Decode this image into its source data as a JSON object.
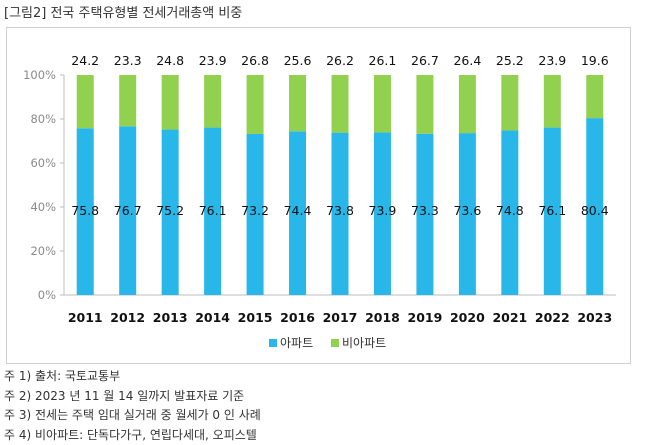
{
  "title": "[그림2] 전국 주택유형별 전세거래총액 비중",
  "colors": {
    "apartment": "#29b6e8",
    "non_apartment": "#92d050"
  },
  "chart_data": {
    "type": "bar",
    "stacked": true,
    "categories": [
      "2011",
      "2012",
      "2013",
      "2014",
      "2015",
      "2016",
      "2017",
      "2018",
      "2019",
      "2020",
      "2021",
      "2022",
      "2023"
    ],
    "series": [
      {
        "name": "아파트",
        "values": [
          75.8,
          76.7,
          75.2,
          76.1,
          73.2,
          74.4,
          73.8,
          73.9,
          73.3,
          73.6,
          74.8,
          76.1,
          80.4
        ]
      },
      {
        "name": "비아파트",
        "values": [
          24.2,
          23.3,
          24.8,
          23.9,
          26.8,
          25.6,
          26.2,
          26.1,
          26.7,
          26.4,
          25.2,
          23.9,
          19.6
        ]
      }
    ],
    "yticks": [
      "0%",
      "20%",
      "40%",
      "60%",
      "80%",
      "100%"
    ],
    "ylim": [
      0,
      100
    ],
    "legend_position": "bottom",
    "grid": false
  },
  "notes": [
    "주 1) 출처: 국토교통부",
    "주 2) 2023 년 11 월 14 일까지 발표자료 기준",
    "주 3) 전세는 주택 임대 실거래 중 월세가 0 인 사례",
    "주 4) 비아파트: 단독다가구, 연립다세대, 오피스텔"
  ]
}
